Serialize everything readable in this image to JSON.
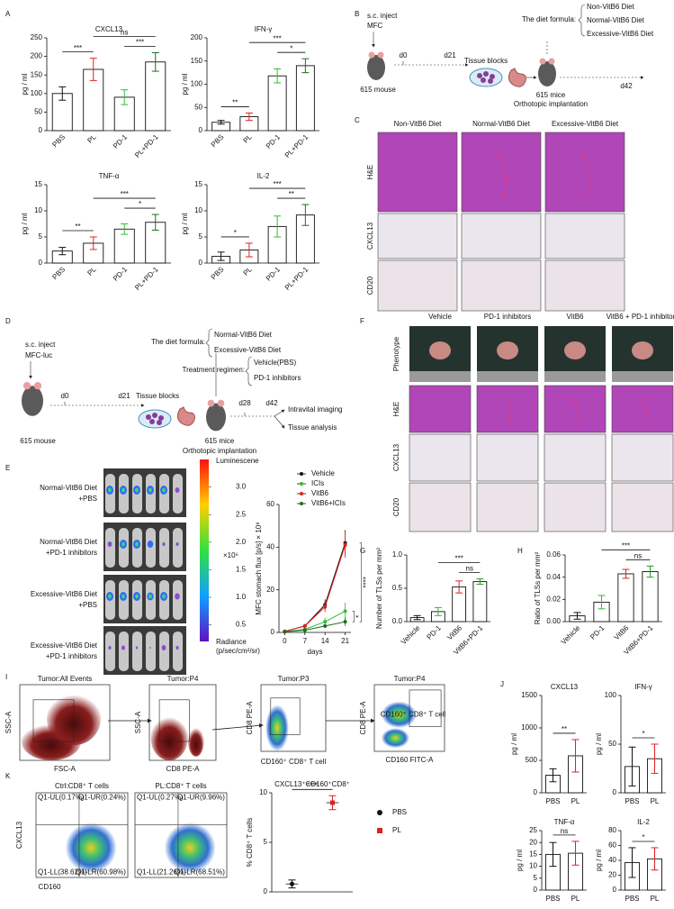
{
  "panels": [
    "A",
    "B",
    "C",
    "D",
    "E",
    "F",
    "G",
    "H",
    "I",
    "J",
    "K"
  ],
  "diagram_b": {
    "inject": "s.c. inject",
    "cell": "MFC",
    "mouse": "615 mouse",
    "day0": "d0",
    "day21": "d21",
    "tissue": "Tissue blocks",
    "mice": "615 mice",
    "implant": "Orthotopic implantation",
    "day42": "d42",
    "formula": "The diet formula:",
    "diets": [
      "Non-VitB6 Diet",
      "Normal-VitB6 Diet",
      "Excessive-VitB6 Diet"
    ]
  },
  "histology_c": {
    "columns": [
      "Non-VitB6 Diet",
      "Normal-VitB6 Diet",
      "Excessive-VitB6 Diet"
    ],
    "rows": [
      "H&E",
      "CXCL13",
      "CD20"
    ]
  },
  "diagram_d": {
    "inject": "s.c. inject",
    "cell": "MFC-luc",
    "mouse": "615 mouse",
    "day0": "d0",
    "day21": "d21",
    "tissue": "Tissue blocks",
    "formula": "The diet formula:",
    "diets": [
      "Normal-VitB6 Diet",
      "Excessive-VitB6 Diet"
    ],
    "regimen": "Treatment regimen:",
    "treatments": [
      "Vehicle(PBS)",
      "PD-1 inhibitors"
    ],
    "mice": "615 mice",
    "implant": "Orthotopic implantation",
    "day28": "d28",
    "day42": "d42",
    "outcomes": [
      "Intravital imaging",
      "Tissue analysis"
    ]
  },
  "imaging_e": {
    "groups": [
      {
        "diet": "Normal-VitB6 Diet",
        "treatment": "+PBS"
      },
      {
        "diet": "Normal-VitB6 Diet",
        "treatment": "+PD-1 inhibitors"
      },
      {
        "diet": "Excessive-VitB6 Diet",
        "treatment": "+PBS"
      },
      {
        "diet": "Excessive-VitB6 Diet",
        "treatment": "+PD-1 inhibitors"
      }
    ],
    "colorbar": {
      "title": "Luminescene",
      "lim": [
        0.2,
        3.5
      ],
      "ticks": [
        {
          "value": 3,
          "label": "3.0"
        },
        {
          "value": 2.5,
          "label": "2.5"
        },
        {
          "value": 2,
          "label": "2.0"
        },
        {
          "value": 1.5,
          "label": "1.5"
        },
        {
          "value": 1,
          "label": "1.0"
        },
        {
          "value": 0.5,
          "label": "0.5"
        }
      ],
      "scale": "×10⁶",
      "unit": [
        "Radiance",
        "(p/sec/cm²/sr)"
      ]
    }
  },
  "histology_f": {
    "columns": [
      "Vehicle",
      "PD-1 inhibitors",
      "VitB6",
      "VitB6 + PD-1 inhibitors"
    ],
    "rows": [
      "Phenotype",
      "H&E",
      "CXCL13",
      "CD20"
    ]
  },
  "flow_i": {
    "plots": [
      {
        "title": "Tumor:All Events",
        "ylabel": "SSC-A",
        "xlabel": "FSC-A"
      },
      {
        "title": "Tumor:P4",
        "ylabel": "SSC-A",
        "xlabel": "CD8 PE-A"
      },
      {
        "title": "Tumor:P3",
        "ylabel": "CD8 PE-A",
        "note": "CD160⁺ CD8⁺ T cell"
      },
      {
        "title": "Tumor:P4",
        "ylabel": "CD8 PE-A",
        "xlabel": "CD160 FITC-A",
        "note": "CD160⁺ CD8⁺ T cell"
      }
    ]
  },
  "flow_k": {
    "ylabel": "CXCL13",
    "xlabel": "CD160",
    "plots": [
      {
        "title": "Ctrl:CD8⁺ T cells",
        "quadrants": [
          "Q1-UL(0.17%)",
          "Q1-UR(0.24%)",
          "Q1-LL(38.62%)",
          "Q1-LR(60.98%)"
        ]
      },
      {
        "title": "PL:CD8⁺ T cells",
        "quadrants": [
          "Q1-UL(0.27%)",
          "Q1-UR(9.96%)",
          "Q1-LL(21.26%)",
          "Q1-LR(68.51%)"
        ]
      }
    ]
  },
  "chart_data": [
    {
      "type": "bar",
      "title": "CXCL13",
      "ylabel": "pg / ml",
      "categories": [
        "PBS",
        "PL",
        "PD-1",
        "PL+PD-1"
      ],
      "values": [
        100,
        165,
        90,
        185
      ],
      "errors": [
        18,
        30,
        20,
        25
      ],
      "colors": [
        "#111111",
        "#e02020",
        "#33bb33",
        "#1e6e1e"
      ],
      "ylim": [
        0,
        250
      ],
      "yticks": [
        0,
        50,
        100,
        150,
        200,
        250
      ],
      "annotations": [
        {
          "text": "***",
          "between": [
            0,
            1
          ]
        },
        {
          "text": "***",
          "between": [
            2,
            3
          ]
        },
        {
          "text": "ns",
          "between": [
            1,
            3
          ]
        }
      ]
    },
    {
      "type": "bar",
      "title": "IFN-γ",
      "ylabel": "pg / ml",
      "categories": [
        "PBS",
        "PL",
        "PD-1",
        "PL+PD-1"
      ],
      "values": [
        18,
        30,
        118,
        140
      ],
      "errors": [
        4,
        8,
        15,
        15
      ],
      "colors": [
        "#111111",
        "#e02020",
        "#33bb33",
        "#1e6e1e"
      ],
      "ylim": [
        0,
        200
      ],
      "yticks": [
        0,
        50,
        100,
        150,
        200
      ],
      "annotations": [
        {
          "text": "**",
          "between": [
            0,
            1
          ]
        },
        {
          "text": "*",
          "between": [
            2,
            3
          ]
        },
        {
          "text": "***",
          "between": [
            1,
            3
          ]
        }
      ]
    },
    {
      "type": "bar",
      "title": "TNF-α",
      "ylabel": "pg / ml",
      "categories": [
        "PBS",
        "PL",
        "PD-1",
        "PL+PD-1"
      ],
      "values": [
        2.3,
        3.8,
        6.5,
        7.8
      ],
      "errors": [
        0.7,
        1.2,
        1,
        1.5
      ],
      "colors": [
        "#111111",
        "#e02020",
        "#33bb33",
        "#1e6e1e"
      ],
      "ylim": [
        0,
        15
      ],
      "yticks": [
        0,
        5,
        10,
        15
      ],
      "annotations": [
        {
          "text": "**",
          "between": [
            0,
            1
          ]
        },
        {
          "text": "*",
          "between": [
            2,
            3
          ]
        },
        {
          "text": "***",
          "between": [
            1,
            3
          ]
        }
      ]
    },
    {
      "type": "bar",
      "title": "IL-2",
      "ylabel": "pg / ml",
      "categories": [
        "PBS",
        "PL",
        "PD-1",
        "PL+PD-1"
      ],
      "values": [
        1.3,
        2.5,
        7,
        9.2
      ],
      "errors": [
        0.8,
        1.3,
        2,
        2
      ],
      "colors": [
        "#111111",
        "#e02020",
        "#33bb33",
        "#1e6e1e"
      ],
      "ylim": [
        0,
        15
      ],
      "yticks": [
        0,
        5,
        10,
        15
      ],
      "annotations": [
        {
          "text": "*",
          "between": [
            0,
            1
          ]
        },
        {
          "text": "**",
          "between": [
            2,
            3
          ]
        },
        {
          "text": "***",
          "between": [
            1,
            3
          ]
        }
      ]
    },
    {
      "type": "line",
      "ylabel": "MFC stomach flux [p/s] × 10⁸",
      "xlabel": "days",
      "x": [
        0,
        7,
        14,
        21
      ],
      "xlim": [
        -2,
        23
      ],
      "xticks": [
        0,
        7,
        14,
        21
      ],
      "ylim": [
        0,
        60
      ],
      "yticks": [
        0,
        20,
        40,
        60
      ],
      "legend": "upper-right",
      "series": [
        {
          "name": "Vehicle",
          "color": "#111111",
          "values": [
            0.5,
            3,
            13,
            42
          ],
          "errors": [
            0.3,
            1,
            2.5,
            6
          ]
        },
        {
          "name": "ICIs",
          "color": "#33bb33",
          "values": [
            0.3,
            1.5,
            5,
            10
          ],
          "errors": [
            0.2,
            0.8,
            2,
            4
          ]
        },
        {
          "name": "VitB6",
          "color": "#e02020",
          "values": [
            0.5,
            3,
            12,
            41
          ],
          "errors": [
            0.3,
            1,
            2.5,
            6
          ]
        },
        {
          "name": "VitB6+ICIs",
          "color": "#1e6e1e",
          "values": [
            0.3,
            1,
            3,
            5
          ],
          "errors": [
            0.2,
            0.5,
            1,
            2
          ]
        }
      ],
      "annotations": [
        {
          "text": "****",
          "between": [
            0,
            3
          ]
        },
        {
          "text": "*",
          "between": [
            1,
            3
          ]
        }
      ]
    },
    {
      "type": "bar",
      "ylabel": "Number of TLSs per mm²",
      "categories": [
        "Vehicle",
        "PD-1",
        "VitB6",
        "VitB6+PD-1"
      ],
      "values": [
        0.06,
        0.15,
        0.52,
        0.6
      ],
      "errors": [
        0.03,
        0.06,
        0.09,
        0.04
      ],
      "colors": [
        "#111111",
        "#33bb33",
        "#e02020",
        "#2a9a2a"
      ],
      "ylim": [
        0,
        1
      ],
      "yticks": [
        {
          "value": 0,
          "label": "0.0"
        },
        0.5,
        {
          "value": 1,
          "label": "1.0"
        }
      ],
      "annotations": [
        {
          "text": "ns",
          "between": [
            2,
            3
          ]
        },
        {
          "text": "***",
          "between": [
            1,
            3
          ]
        }
      ]
    },
    {
      "type": "bar",
      "ylabel": "Ratio of TLSs per mm²",
      "categories": [
        "Vehicle",
        "PD-1",
        "VitB6",
        "VitB6+PD-1"
      ],
      "values": [
        0.0052,
        0.0175,
        0.043,
        0.045
      ],
      "errors": [
        0.003,
        0.006,
        0.004,
        0.005
      ],
      "colors": [
        "#111111",
        "#33bb33",
        "#e02020",
        "#2a9a2a"
      ],
      "ylim": [
        0,
        0.06
      ],
      "yticks": [
        {
          "value": 0,
          "label": "0.00"
        },
        0.02,
        0.04,
        0.06
      ],
      "annotations": [
        {
          "text": "ns",
          "between": [
            2,
            3
          ]
        },
        {
          "text": "***",
          "between": [
            1,
            3
          ]
        }
      ]
    },
    {
      "type": "bar",
      "title": "CXCL13",
      "ylabel": "pg / ml",
      "categories": [
        "PBS",
        "PL"
      ],
      "values": [
        270,
        570
      ],
      "errors": [
        100,
        250
      ],
      "colors": [
        "#111111",
        "#e02020"
      ],
      "ylim": [
        0,
        1500
      ],
      "yticks": [
        0,
        500,
        1000,
        1500
      ],
      "annotations": [
        {
          "text": "**",
          "between": [
            0,
            1
          ]
        }
      ]
    },
    {
      "type": "bar",
      "title": "IFN-γ",
      "ylabel": "pg / ml",
      "categories": [
        "PBS",
        "PL"
      ],
      "values": [
        27,
        35
      ],
      "errors": [
        20,
        15
      ],
      "colors": [
        "#111111",
        "#e02020"
      ],
      "ylim": [
        0,
        100
      ],
      "yticks": [
        0,
        50,
        100
      ],
      "annotations": [
        {
          "text": "*",
          "between": [
            0,
            1
          ]
        }
      ]
    },
    {
      "type": "bar",
      "title": "TNF-α",
      "ylabel": "pg / ml",
      "categories": [
        "PBS",
        "PL"
      ],
      "values": [
        15,
        15.5
      ],
      "errors": [
        5,
        5
      ],
      "colors": [
        "#111111",
        "#e02020"
      ],
      "ylim": [
        0,
        25
      ],
      "yticks": [
        0,
        5,
        10,
        15,
        20,
        25
      ],
      "annotations": [
        {
          "text": "ns",
          "between": [
            0,
            1
          ]
        }
      ]
    },
    {
      "type": "bar",
      "title": "IL-2",
      "ylabel": "pg / ml",
      "categories": [
        "PBS",
        "PL"
      ],
      "values": [
        37,
        42
      ],
      "errors": [
        20,
        15
      ],
      "colors": [
        "#111111",
        "#e02020"
      ],
      "ylim": [
        0,
        80
      ],
      "yticks": [
        0,
        20,
        40,
        60,
        80
      ],
      "annotations": [
        {
          "text": "*",
          "between": [
            0,
            1
          ]
        }
      ]
    },
    {
      "type": "dot",
      "title": "CXCL13⁺CD160⁺CD8⁺",
      "ylabel": "% CD8⁺ T cells",
      "categories": [
        "PBS",
        "PL"
      ],
      "values": [
        0.8,
        9
      ],
      "errors": [
        0.4,
        0.7
      ],
      "colors": [
        "#111111",
        "#e02020"
      ],
      "ylim": [
        0,
        10
      ],
      "yticks": [
        0,
        5,
        10
      ],
      "legend": "right",
      "annotations": [
        {
          "text": "****",
          "between": [
            0,
            1
          ]
        }
      ]
    }
  ]
}
